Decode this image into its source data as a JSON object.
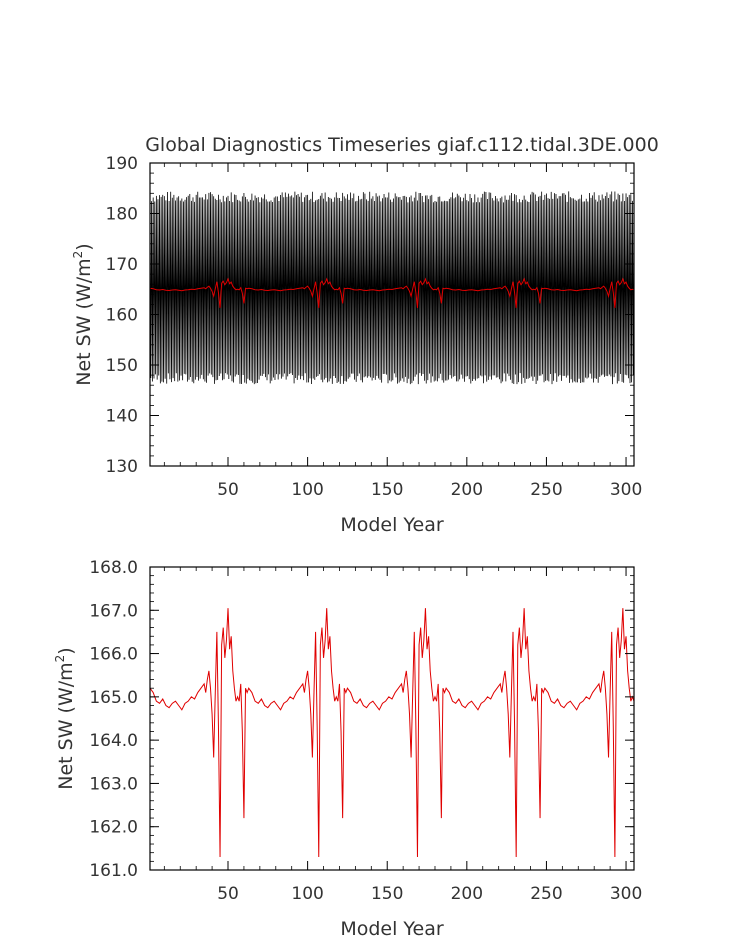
{
  "chart_data": [
    {
      "type": "line",
      "title": "Global Diagnostics Timeseries giaf.c112.tidal.3DE.000",
      "xlabel": "Model Year",
      "ylabel_main": "Net SW (W/m",
      "ylabel_sup": "2",
      "ylabel_close": ")",
      "xlim": [
        1,
        305
      ],
      "ylim": [
        130,
        190
      ],
      "x_ticks": [
        50,
        100,
        150,
        200,
        250,
        300
      ],
      "y_ticks": [
        130,
        140,
        150,
        160,
        170,
        180,
        190
      ],
      "x_tick_labels": [
        "50",
        "100",
        "150",
        "200",
        "250",
        "300"
      ],
      "y_tick_labels": [
        "130",
        "140",
        "150",
        "160",
        "170",
        "180",
        "190"
      ],
      "series": [
        {
          "kind": "monthly",
          "color": "#000000",
          "mean": 164.8,
          "amplitude": 20.5,
          "cycles_per_year": 1,
          "values_note_excluded": true
        },
        {
          "kind": "annual",
          "color": "#e00000",
          "ref": "annual_series"
        }
      ]
    },
    {
      "type": "line",
      "title": "",
      "xlabel": "Model Year",
      "ylabel_main": "Net SW (W/m",
      "ylabel_sup": "2",
      "ylabel_close": ")",
      "xlim": [
        1,
        305
      ],
      "ylim": [
        161.0,
        168.0
      ],
      "x_ticks": [
        50,
        100,
        150,
        200,
        250,
        300
      ],
      "y_ticks": [
        161,
        162,
        163,
        164,
        165,
        166,
        167,
        168
      ],
      "x_tick_labels": [
        "50",
        "100",
        "150",
        "200",
        "250",
        "300"
      ],
      "y_tick_labels": [
        "161.0",
        "162.0",
        "163.0",
        "164.0",
        "165.0",
        "166.0",
        "167.0",
        "168.0"
      ],
      "series": [
        {
          "kind": "annual",
          "color": "#e00000",
          "ref": "annual_series"
        }
      ]
    }
  ],
  "annual_series": {
    "cycle_length": 62,
    "x_start": 1,
    "x_end": 305,
    "cycle_template": [
      [
        0,
        165.2
      ],
      [
        2,
        165.1
      ],
      [
        4,
        164.9
      ],
      [
        6,
        164.85
      ],
      [
        8,
        164.95
      ],
      [
        10,
        164.8
      ],
      [
        12,
        164.75
      ],
      [
        14,
        164.85
      ],
      [
        16,
        164.9
      ],
      [
        18,
        164.8
      ],
      [
        20,
        164.7
      ],
      [
        22,
        164.85
      ],
      [
        24,
        164.9
      ],
      [
        26,
        165.0
      ],
      [
        28,
        164.95
      ],
      [
        30,
        165.1
      ],
      [
        32,
        165.2
      ],
      [
        34,
        165.3
      ],
      [
        35,
        165.1
      ],
      [
        36,
        165.4
      ],
      [
        37,
        165.6
      ],
      [
        38,
        165.2
      ],
      [
        39,
        164.6
      ],
      [
        40,
        163.6
      ],
      [
        41,
        165.1
      ],
      [
        42,
        166.5
      ],
      [
        43,
        164.3
      ],
      [
        44,
        161.3
      ],
      [
        45,
        166.2
      ],
      [
        46,
        166.6
      ],
      [
        47,
        165.9
      ],
      [
        48,
        166.3
      ],
      [
        49,
        167.05
      ],
      [
        50,
        166.1
      ],
      [
        51,
        166.4
      ],
      [
        52,
        165.6
      ],
      [
        53,
        165.2
      ],
      [
        54,
        164.9
      ],
      [
        55,
        165.0
      ],
      [
        56,
        164.9
      ],
      [
        57,
        165.3
      ],
      [
        58,
        164.2
      ],
      [
        59,
        162.2
      ],
      [
        60,
        165.2
      ],
      [
        61,
        165.1
      ]
    ]
  }
}
